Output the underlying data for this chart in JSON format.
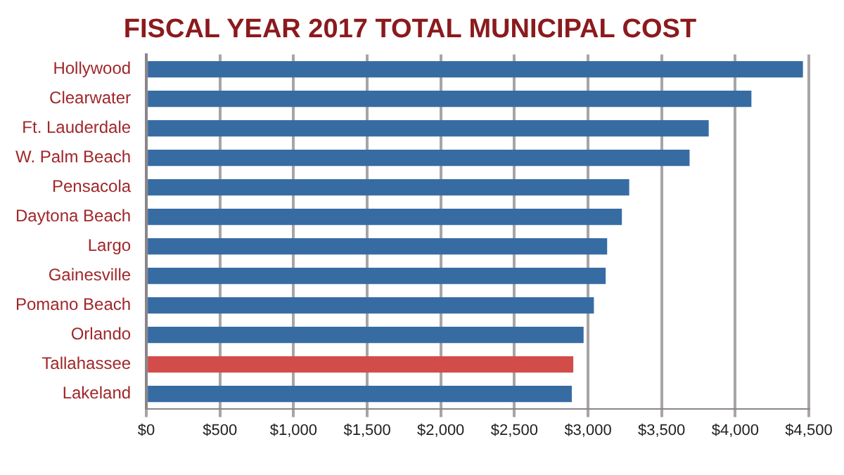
{
  "chart_data": {
    "type": "bar",
    "orientation": "horizontal",
    "title": "FISCAL YEAR 2017 TOTAL MUNICIPAL COST",
    "categories": [
      "Hollywood",
      "Clearwater",
      "Ft. Lauderdale",
      "W. Palm Beach",
      "Pensacola",
      "Daytona Beach",
      "Largo",
      "Gainesville",
      "Pomano Beach",
      "Orlando",
      "Tallahassee",
      "Lakeland"
    ],
    "values": [
      4460,
      4110,
      3820,
      3690,
      3280,
      3230,
      3130,
      3120,
      3040,
      2970,
      2900,
      2890
    ],
    "colors": [
      "#376ca3",
      "#376ca3",
      "#376ca3",
      "#376ca3",
      "#376ca3",
      "#376ca3",
      "#376ca3",
      "#376ca3",
      "#376ca3",
      "#376ca3",
      "#d24c49",
      "#376ca3"
    ],
    "xlim": [
      0,
      4500
    ],
    "xticks": [
      {
        "value": 0,
        "label": "$0"
      },
      {
        "value": 500,
        "label": "$500"
      },
      {
        "value": 1000,
        "label": "$1,000"
      },
      {
        "value": 1500,
        "label": "$1,500"
      },
      {
        "value": 2000,
        "label": "$2,000"
      },
      {
        "value": 2500,
        "label": "$2,500"
      },
      {
        "value": 3000,
        "label": "$3,000"
      },
      {
        "value": 3500,
        "label": "$3,500"
      },
      {
        "value": 4000,
        "label": "$4,000"
      },
      {
        "value": 4500,
        "label": "$4,500"
      }
    ],
    "grid": "x",
    "legend": false
  }
}
